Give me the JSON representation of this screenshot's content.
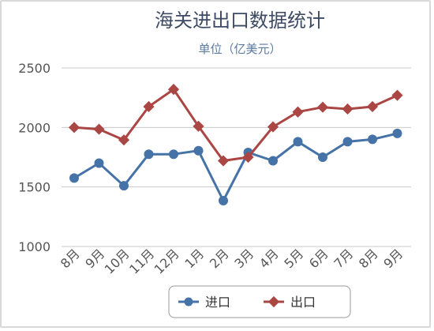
{
  "chart_data": {
    "type": "line",
    "title": "海关进出口数据统计",
    "subtitle": "单位（亿美元）",
    "categories": [
      "8月",
      "9月",
      "10月",
      "11月",
      "12月",
      "1月",
      "2月",
      "3月",
      "4月",
      "5月",
      "6月",
      "7月",
      "8月",
      "9月"
    ],
    "series": [
      {
        "name": "进口",
        "color": "#4572a7",
        "marker": "circle",
        "values": [
          1575,
          1700,
          1510,
          1775,
          1775,
          1805,
          1385,
          1790,
          1720,
          1880,
          1750,
          1880,
          1900,
          1950
        ]
      },
      {
        "name": "出口",
        "color": "#aa4643",
        "marker": "diamond",
        "values": [
          2000,
          1985,
          1895,
          2175,
          2320,
          2010,
          1720,
          1750,
          2005,
          2130,
          2170,
          2155,
          2175,
          2270
        ]
      }
    ],
    "yticks": [
      1000,
      1500,
      2000,
      2500
    ],
    "ylim": [
      1000,
      2600
    ],
    "grid": true,
    "legend_position": "bottom"
  }
}
